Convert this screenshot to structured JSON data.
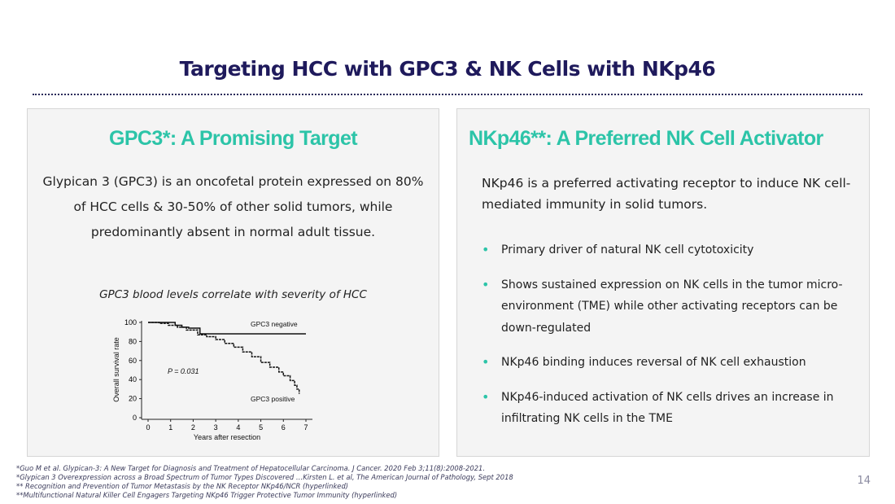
{
  "slide": {
    "title": "Targeting HCC with GPC3 & NK Cells with NKp46",
    "page_number": "14"
  },
  "left_panel": {
    "title": "GPC3*: A Promising Target",
    "description": "Glypican 3 (GPC3) is an oncofetal  protein expressed on 80% of HCC cells & 30-50% of other solid tumors, while predominantly absent in normal adult tissue.",
    "subtitle": "GPC3 blood levels correlate with severity of HCC"
  },
  "right_panel": {
    "title": "NKp46**: A Preferred NK Cell Activator",
    "intro": "NKp46 is a preferred activating receptor to induce NK cell-mediated immunity in solid tumors.",
    "bullet_glyph": "•",
    "bullets": [
      "Primary driver of natural NK cell cytotoxicity",
      "Shows sustained expression on NK cells in the tumor micro-environment (TME) while other activating receptors can be down-regulated",
      "NKp46 binding induces reversal of NK cell exhaustion",
      "NKp46-induced activation of NK cells drives an increase in infiltrating NK cells in the TME"
    ]
  },
  "references": [
    "*Guo M et al. Glypican-3: A New Target for Diagnosis and Treatment of Hepatocellular Carcinoma. J Cancer. 2020 Feb 3;11(8):2008-2021.",
    "*Glypican 3 Overexpression across a Broad Spectrum of Tumor Types Discovered …Kirsten L. et al, The American Journal of Pathology, Sept 2018",
    "** Recognition and Prevention of Tumor Metastasis by the NK Receptor NKp46/NCR (hyperlinked)",
    "**Multifunctional Natural Killer Cell Engagers Targeting NKp46 Trigger Protective Tumor Immunity (hyperlinked)"
  ],
  "colors": {
    "title": "#1f1a5c",
    "accent": "#2cc4a8",
    "panel_bg": "#f4f4f4"
  },
  "chart_data": {
    "type": "line",
    "xlabel": "Years after resection",
    "ylabel": "Overall survival rate",
    "xlim": [
      0,
      7
    ],
    "ylim": [
      0,
      100
    ],
    "x_ticks": [
      "0",
      "1",
      "2",
      "3",
      "4",
      "5",
      "6",
      "7"
    ],
    "y_ticks": [
      "0",
      "20",
      "40",
      "60",
      "80",
      "100"
    ],
    "annotation": "P = 0.031",
    "series": [
      {
        "name": "GPC3 negative",
        "x": [
          0,
          0.8,
          1.2,
          1.5,
          1.8,
          2.3,
          7
        ],
        "y": [
          100,
          100,
          97,
          95,
          94,
          88,
          88
        ]
      },
      {
        "name": "GPC3 positive",
        "x": [
          0,
          0.5,
          0.9,
          1.3,
          1.7,
          2.2,
          2.6,
          3.0,
          3.4,
          3.8,
          4.2,
          4.6,
          5.0,
          5.4,
          5.8,
          6.0,
          6.3,
          6.5,
          6.6,
          6.7
        ],
        "y": [
          100,
          99,
          97,
          95,
          92,
          87,
          85,
          82,
          78,
          74,
          69,
          64,
          58,
          53,
          48,
          44,
          39,
          34,
          30,
          25
        ]
      }
    ]
  }
}
